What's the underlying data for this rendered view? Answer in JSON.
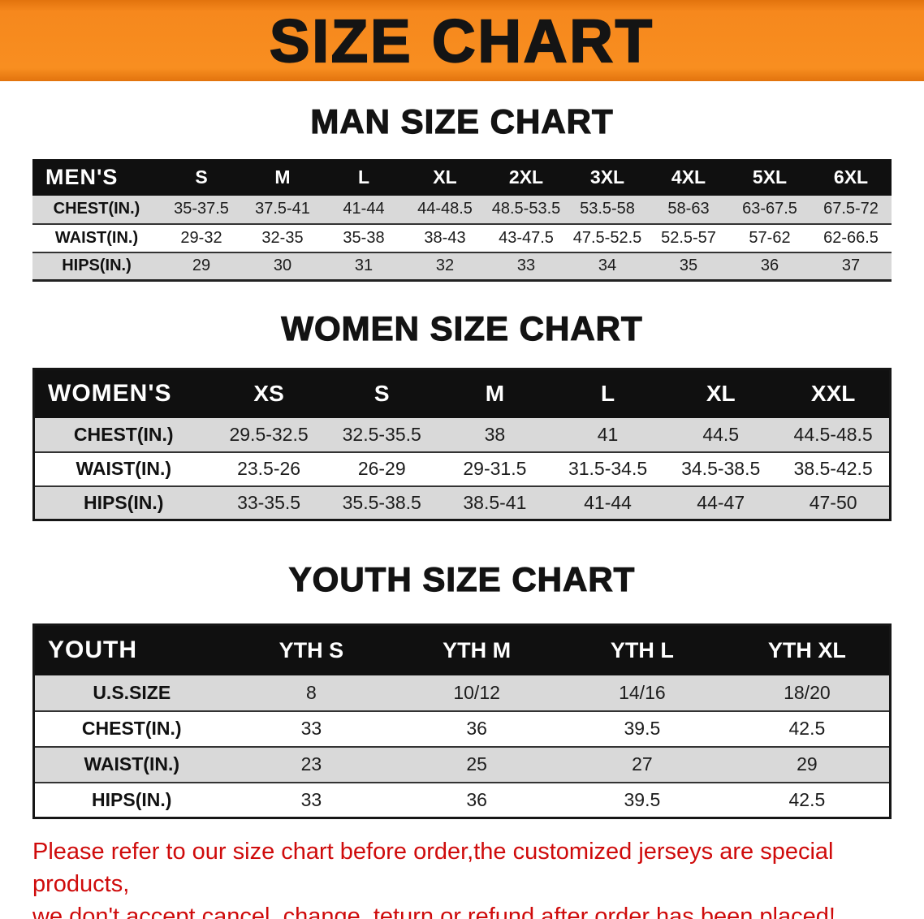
{
  "banner": {
    "title": "SIZE CHART"
  },
  "colors": {
    "banner_bg": "#f6881d",
    "table_header_bg": "#101010",
    "row_alt_bg": "#d9d9d9",
    "footnote_text": "#cf0b0b",
    "heading_text": "#131313"
  },
  "chart_data": [
    {
      "type": "table",
      "title": "MAN SIZE CHART",
      "corner_label": "MEN'S",
      "columns": [
        "S",
        "M",
        "L",
        "XL",
        "2XL",
        "3XL",
        "4XL",
        "5XL",
        "6XL"
      ],
      "rows": [
        {
          "label": "CHEST(IN.)",
          "values": [
            "35-37.5",
            "37.5-41",
            "41-44",
            "44-48.5",
            "48.5-53.5",
            "53.5-58",
            "58-63",
            "63-67.5",
            "67.5-72"
          ]
        },
        {
          "label": "WAIST(IN.)",
          "values": [
            "29-32",
            "32-35",
            "35-38",
            "38-43",
            "43-47.5",
            "47.5-52.5",
            "52.5-57",
            "57-62",
            "62-66.5"
          ]
        },
        {
          "label": "HIPS(IN.)",
          "values": [
            "29",
            "30",
            "31",
            "32",
            "33",
            "34",
            "35",
            "36",
            "37"
          ]
        }
      ]
    },
    {
      "type": "table",
      "title": "WOMEN SIZE CHART",
      "corner_label": "WOMEN'S",
      "columns": [
        "XS",
        "S",
        "M",
        "L",
        "XL",
        "XXL"
      ],
      "rows": [
        {
          "label": "CHEST(IN.)",
          "values": [
            "29.5-32.5",
            "32.5-35.5",
            "38",
            "41",
            "44.5",
            "44.5-48.5"
          ]
        },
        {
          "label": "WAIST(IN.)",
          "values": [
            "23.5-26",
            "26-29",
            "29-31.5",
            "31.5-34.5",
            "34.5-38.5",
            "38.5-42.5"
          ]
        },
        {
          "label": "HIPS(IN.)",
          "values": [
            "33-35.5",
            "35.5-38.5",
            "38.5-41",
            "41-44",
            "44-47",
            "47-50"
          ]
        }
      ]
    },
    {
      "type": "table",
      "title": "YOUTH SIZE CHART",
      "corner_label": "YOUTH",
      "columns": [
        "YTH S",
        "YTH M",
        "YTH L",
        "YTH XL"
      ],
      "rows": [
        {
          "label": "U.S.SIZE",
          "values": [
            "8",
            "10/12",
            "14/16",
            "18/20"
          ]
        },
        {
          "label": "CHEST(IN.)",
          "values": [
            "33",
            "36",
            "39.5",
            "42.5"
          ]
        },
        {
          "label": "WAIST(IN.)",
          "values": [
            "23",
            "25",
            "27",
            "29"
          ]
        },
        {
          "label": "HIPS(IN.)",
          "values": [
            "33",
            "36",
            "39.5",
            "42.5"
          ]
        }
      ]
    }
  ],
  "footnote": {
    "line1": "Please refer to our size chart before order,the customized jerseys are special products,",
    "line2": "we don't accept cancel, change, teturn or refund after order has been placed!"
  }
}
